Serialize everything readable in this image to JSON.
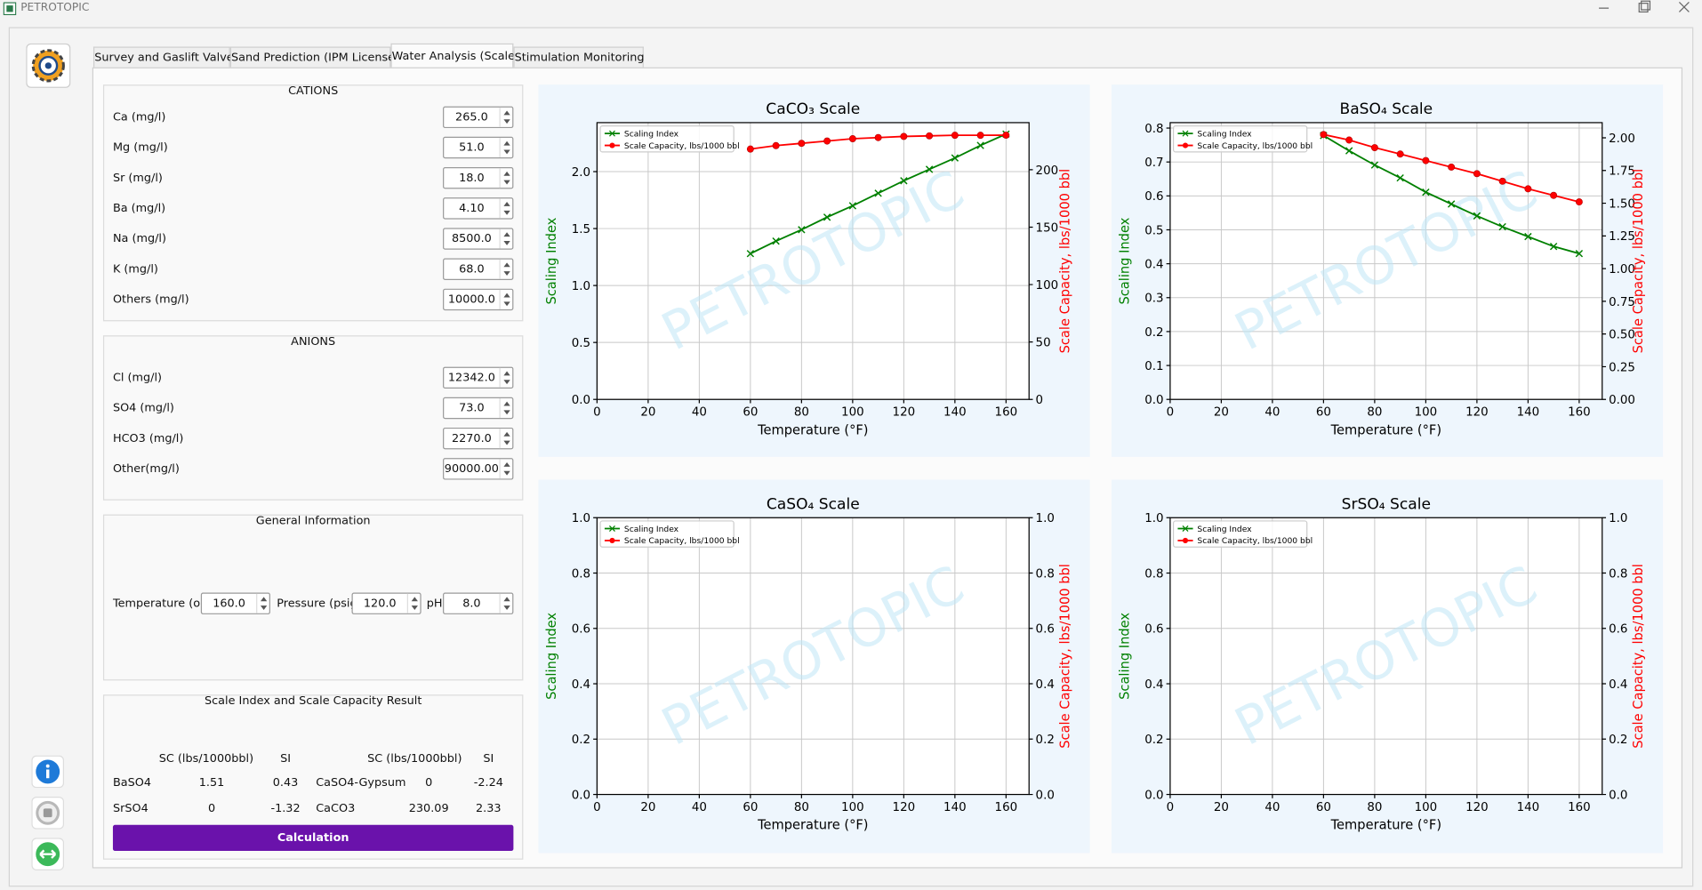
{
  "window": {
    "title": "PETROTOPIC"
  },
  "tabs": [
    "Survey and Gaslift Valves",
    "Sand Prediction (IPM License)",
    "Water Analysis (Scale)",
    "Stimulation Monitoring"
  ],
  "active_tab": 2,
  "cations": {
    "title": "CATIONS",
    "fields": [
      {
        "label": "Ca (mg/l)",
        "value": "265.0"
      },
      {
        "label": "Mg (mg/l)",
        "value": "51.0"
      },
      {
        "label": "Sr (mg/l)",
        "value": "18.0"
      },
      {
        "label": "Ba (mg/l)",
        "value": "4.10"
      },
      {
        "label": "Na (mg/l)",
        "value": "8500.0"
      },
      {
        "label": "K (mg/l)",
        "value": "68.0"
      },
      {
        "label": "Others (mg/l)",
        "value": "10000.0"
      }
    ]
  },
  "anions": {
    "title": "ANIONS",
    "fields": [
      {
        "label": "Cl (mg/l)",
        "value": "12342.0"
      },
      {
        "label": "SO4 (mg/l)",
        "value": "73.0"
      },
      {
        "label": "HCO3 (mg/l)",
        "value": "2270.0"
      },
      {
        "label": "Other(mg/l)",
        "value": "90000.00"
      }
    ]
  },
  "general": {
    "title": "General Information",
    "fields": [
      {
        "label": "Temperature (oF)",
        "value": "160.0"
      },
      {
        "label": "Pressure (psig)",
        "value": "120.0"
      },
      {
        "label": "pH",
        "value": "8.0"
      }
    ]
  },
  "results": {
    "title": "Scale Index and Scale Capacity Result",
    "headers": [
      "SC (lbs/1000bbl)",
      "SI",
      "SC (lbs/1000bbl)",
      "SI"
    ],
    "rows": [
      [
        "BaSO4",
        "1.51",
        "0.43",
        "CaSO4-Gypsum",
        "0",
        "-2.24"
      ],
      [
        "SrSO4",
        "0",
        "-1.32",
        "CaCO3",
        "230.09",
        "2.33"
      ]
    ]
  },
  "button": "Calculation",
  "chart_data": [
    {
      "type": "line",
      "title": "CaCO₃ Scale",
      "xlabel": "Temperature (°F)",
      "ylabel": "Scaling Index",
      "y2label": "Scale Capacity, lbs/1000 bbl",
      "watermark": "PETROTOPIC",
      "x": [
        60,
        70,
        80,
        90,
        100,
        110,
        120,
        130,
        140,
        150,
        160
      ],
      "series": [
        {
          "name": "Scaling Index",
          "color": "#008000",
          "marker": "x",
          "values": [
            1.28,
            1.39,
            1.49,
            1.6,
            1.7,
            1.81,
            1.92,
            2.02,
            2.12,
            2.23,
            2.33
          ]
        },
        {
          "name": "Scale Capacity, lbs/1000 bbl",
          "color": "#ff0000",
          "marker": "o",
          "axis": "y2",
          "values": [
            218,
            221,
            223,
            225,
            227,
            228,
            229,
            229.5,
            230,
            230,
            230.09
          ]
        }
      ],
      "xlim": [
        0,
        169
      ],
      "xticks": [
        0,
        20,
        40,
        60,
        80,
        100,
        120,
        140,
        160
      ],
      "ylim": [
        0,
        2.43
      ],
      "yticks": [
        {
          "value": 0,
          "label": "0.0"
        },
        0.5,
        {
          "value": 1,
          "label": "1.0"
        },
        1.5,
        {
          "value": 2,
          "label": "2.0"
        }
      ],
      "y2lim": [
        0,
        241
      ],
      "y2ticks": [
        0,
        50,
        100,
        150,
        200
      ],
      "grid": true,
      "legend": "upper left"
    },
    {
      "type": "line",
      "title": "BaSO₄ Scale",
      "xlabel": "Temperature (°F)",
      "ylabel": "Scaling Index",
      "y2label": "Scale Capacity, lbs/1000 bbl",
      "watermark": "PETROTOPIC",
      "x": [
        60,
        70,
        80,
        90,
        100,
        110,
        120,
        130,
        140,
        150,
        160
      ],
      "series": [
        {
          "name": "Scaling Index",
          "color": "#008000",
          "marker": "x",
          "values": [
            0.778,
            0.733,
            0.691,
            0.653,
            0.611,
            0.576,
            0.541,
            0.509,
            0.48,
            0.451,
            0.43
          ]
        },
        {
          "name": "Scale Capacity, lbs/1000 bbl",
          "color": "#ff0000",
          "marker": "o",
          "axis": "y2",
          "values": [
            2.025,
            1.983,
            1.925,
            1.876,
            1.826,
            1.776,
            1.726,
            1.668,
            1.61,
            1.56,
            1.51
          ]
        }
      ],
      "xlim": [
        0,
        169
      ],
      "xticks": [
        0,
        20,
        40,
        60,
        80,
        100,
        120,
        140,
        160
      ],
      "ylim": [
        0,
        0.816
      ],
      "yticks": [
        {
          "value": 0,
          "label": "0.0"
        },
        0.1,
        0.2,
        0.3,
        0.4,
        0.5,
        0.6,
        0.7,
        0.8
      ],
      "y2lim": [
        0,
        2.116
      ],
      "y2ticks": [
        {
          "value": 0,
          "label": "0.00"
        },
        0.25,
        {
          "value": 0.5,
          "label": "0.50"
        },
        0.75,
        {
          "value": 1,
          "label": "1.00"
        },
        1.25,
        {
          "value": 1.5,
          "label": "1.50"
        },
        1.75,
        {
          "value": 2,
          "label": "2.00"
        }
      ],
      "grid": true,
      "legend": "upper left"
    },
    {
      "type": "line",
      "title": "CaSO₄ Scale",
      "xlabel": "Temperature (°F)",
      "ylabel": "Scaling Index",
      "y2label": "Scale Capacity, lbs/1000 bbl",
      "watermark": "PETROTOPIC",
      "x": [],
      "series": [
        {
          "name": "Scaling Index",
          "color": "#008000",
          "marker": "x",
          "values": []
        },
        {
          "name": "Scale Capacity, lbs/1000 bbl",
          "color": "#ff0000",
          "marker": "o",
          "axis": "y2",
          "values": []
        }
      ],
      "xlim": [
        0,
        169
      ],
      "xticks": [
        0,
        20,
        40,
        60,
        80,
        100,
        120,
        140,
        160
      ],
      "ylim": [
        0,
        1
      ],
      "yticks": [
        {
          "value": 0,
          "label": "0.0"
        },
        0.2,
        0.4,
        0.6,
        0.8,
        {
          "value": 1,
          "label": "1.0"
        }
      ],
      "y2lim": [
        0,
        1
      ],
      "y2ticks": [
        {
          "value": 0,
          "label": "0.0"
        },
        0.2,
        0.4,
        0.6,
        0.8,
        {
          "value": 1,
          "label": "1.0"
        }
      ],
      "grid": true,
      "legend": "upper left"
    },
    {
      "type": "line",
      "title": "SrSO₄ Scale",
      "xlabel": "Temperature (°F)",
      "ylabel": "Scaling Index",
      "y2label": "Scale Capacity, lbs/1000 bbl",
      "watermark": "PETROTOPIC",
      "x": [],
      "series": [
        {
          "name": "Scaling Index",
          "color": "#008000",
          "marker": "x",
          "values": []
        },
        {
          "name": "Scale Capacity, lbs/1000 bbl",
          "color": "#ff0000",
          "marker": "o",
          "axis": "y2",
          "values": []
        }
      ],
      "xlim": [
        0,
        169
      ],
      "xticks": [
        0,
        20,
        40,
        60,
        80,
        100,
        120,
        140,
        160
      ],
      "ylim": [
        0,
        1
      ],
      "yticks": [
        {
          "value": 0,
          "label": "0.0"
        },
        0.2,
        0.4,
        0.6,
        0.8,
        {
          "value": 1,
          "label": "1.0"
        }
      ],
      "y2lim": [
        0,
        1
      ],
      "y2ticks": [
        {
          "value": 0,
          "label": "0.0"
        },
        0.2,
        0.4,
        0.6,
        0.8,
        {
          "value": 1,
          "label": "1.0"
        }
      ],
      "grid": true,
      "legend": "upper left"
    }
  ]
}
